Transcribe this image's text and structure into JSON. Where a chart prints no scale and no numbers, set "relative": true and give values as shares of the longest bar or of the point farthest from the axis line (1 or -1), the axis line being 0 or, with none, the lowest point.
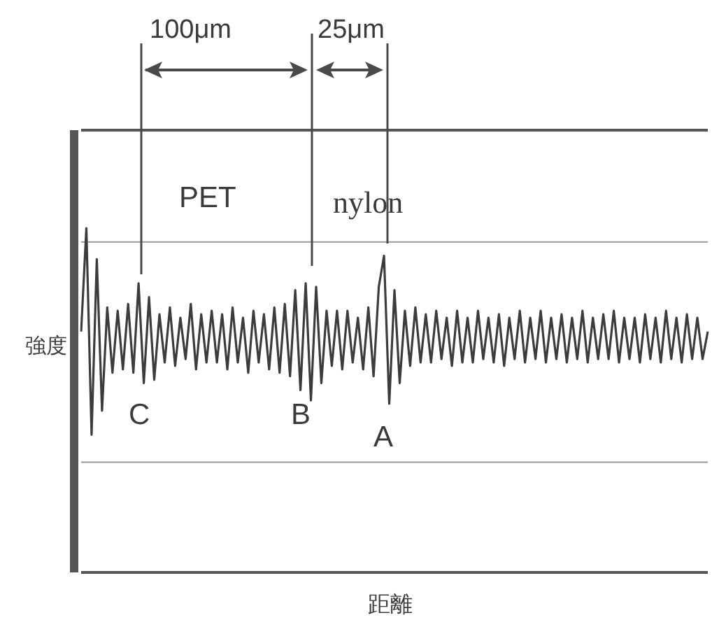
{
  "chart_data": {
    "type": "line",
    "relative": true,
    "xlabel": "距離",
    "ylabel": "強度",
    "ref_lines": [
      {
        "axis": "y",
        "value": 0.96,
        "color": "#9a9a9a"
      },
      {
        "axis": "y",
        "value": 0.32,
        "color": "#9a9a9a"
      }
    ],
    "legend": false,
    "marker": "none",
    "line_style": "solid",
    "annotations": [
      "100μm",
      "25μm",
      "PET",
      "nylon",
      "C",
      "B",
      "A"
    ],
    "categories": [
      null,
      null,
      null,
      null,
      null,
      null,
      null,
      null,
      null,
      null,
      null,
      null,
      null,
      null,
      null,
      null,
      null,
      null,
      null,
      null,
      null,
      null,
      null,
      null,
      null,
      null,
      null,
      null,
      null,
      null,
      null,
      null,
      null,
      null,
      null,
      null,
      null,
      null,
      null,
      null,
      null,
      null,
      null,
      null,
      null,
      null,
      null,
      null,
      null,
      null,
      null,
      null,
      null,
      null,
      null,
      null,
      null,
      null,
      null,
      null,
      null,
      null,
      null,
      null,
      null,
      null,
      null,
      null,
      null,
      null,
      null,
      null,
      null,
      null,
      null,
      null,
      null,
      null,
      null,
      null,
      null,
      null,
      null,
      null,
      null,
      null,
      null,
      null,
      null,
      null,
      null,
      null,
      null,
      null,
      null,
      null,
      null,
      null,
      null,
      null,
      null,
      null,
      null,
      null,
      null,
      null,
      null,
      null,
      null,
      null,
      null,
      null,
      null,
      null,
      null,
      null,
      null,
      null,
      null,
      null,
      null
    ],
    "series": [
      {
        "color": "#3c3c3c",
        "values": [
          0.7,
          1.0,
          0.4,
          0.91,
          0.47,
          0.77,
          0.58,
          0.76,
          0.59,
          0.78,
          0.58,
          0.84,
          0.55,
          0.8,
          0.56,
          0.75,
          0.61,
          0.77,
          0.6,
          0.74,
          0.62,
          0.78,
          0.59,
          0.75,
          0.61,
          0.76,
          0.61,
          0.75,
          0.59,
          0.77,
          0.61,
          0.74,
          0.58,
          0.76,
          0.61,
          0.75,
          0.59,
          0.77,
          0.58,
          0.78,
          0.57,
          0.82,
          0.53,
          0.84,
          0.5,
          0.83,
          0.55,
          0.76,
          0.6,
          0.76,
          0.59,
          0.76,
          0.61,
          0.74,
          0.59,
          0.77,
          0.57,
          0.83,
          0.92,
          0.49,
          0.82,
          0.55,
          0.76,
          0.6,
          0.77,
          0.61,
          0.75,
          0.61,
          0.76,
          0.62,
          0.74,
          0.6,
          0.76,
          0.61,
          0.74,
          0.61,
          0.76,
          0.62,
          0.74,
          0.61,
          0.75,
          0.6,
          0.74,
          0.62,
          0.76,
          0.61,
          0.74,
          0.62,
          0.76,
          0.61,
          0.74,
          0.62,
          0.75,
          0.61,
          0.74,
          0.62,
          0.76,
          0.61,
          0.74,
          0.62,
          0.75,
          0.62,
          0.76,
          0.61,
          0.74,
          0.62,
          0.74,
          0.61,
          0.75,
          0.62,
          0.74,
          0.61,
          0.76,
          0.62,
          0.74,
          0.61,
          0.75,
          0.62,
          0.74,
          0.62,
          0.7
        ]
      }
    ]
  }
}
